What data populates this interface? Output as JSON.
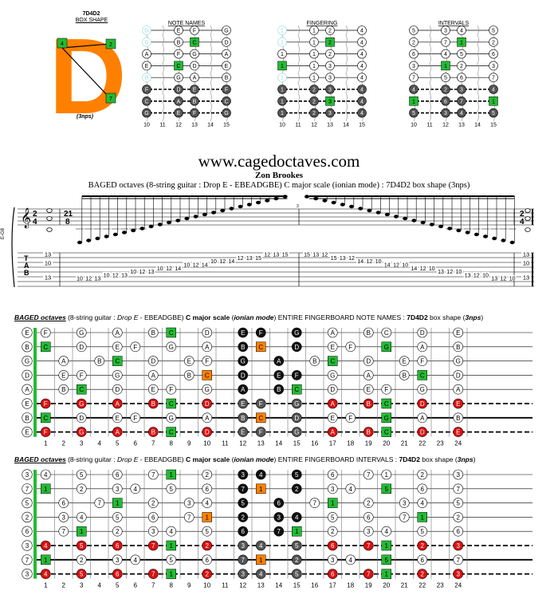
{
  "top_panel": {
    "box_label": "7D4D2",
    "box_shape_label": "BOX SHAPE",
    "shape_letter": "D",
    "shape_markers": [
      "2",
      "4",
      "7"
    ],
    "nps_label": "(3nps)",
    "diagrams": [
      {
        "title": "NOTE NAMES",
        "rows": [
          [
            "G",
            "E",
            "F",
            "G"
          ],
          [
            "D",
            "B",
            "C",
            "D"
          ],
          [
            "A",
            "F",
            "G",
            "A"
          ],
          [
            "E",
            "C",
            "D",
            "E"
          ],
          [
            "B",
            "G",
            "A",
            "B"
          ],
          [
            "F",
            "D",
            "E",
            "F"
          ],
          [
            "C",
            "A",
            "B",
            "C"
          ],
          [
            "G",
            "E",
            "F",
            "G"
          ]
        ],
        "hilite_col_name": "C"
      },
      {
        "title": "FINGERING",
        "rows": [
          [
            "1",
            "1",
            "2",
            "4"
          ],
          [
            "1",
            "1",
            "2",
            "4"
          ],
          [
            "1",
            "1",
            "2",
            "4"
          ],
          [
            "1",
            "1",
            "3",
            "4"
          ],
          [
            "1",
            "1",
            "3",
            "4"
          ],
          [
            "1",
            "2",
            "3",
            "4"
          ],
          [
            "1",
            "2",
            "3",
            "4"
          ],
          [
            "1",
            "2",
            "3",
            "4"
          ]
        ]
      },
      {
        "title": "INTERVALS",
        "rows": [
          [
            "5",
            "3",
            "4",
            "5"
          ],
          [
            "2",
            "7",
            "1",
            "2"
          ],
          [
            "6",
            "4",
            "5",
            "6"
          ],
          [
            "3",
            "1",
            "2",
            "3"
          ],
          [
            "7",
            "5",
            "6",
            "7"
          ],
          [
            "4",
            "2",
            "3",
            "4"
          ],
          [
            "1",
            "6",
            "7",
            "1"
          ],
          [
            "5",
            "3",
            "4",
            "5"
          ]
        ]
      }
    ],
    "fret_numbers": [
      "10",
      "11",
      "12",
      "13",
      "14",
      "15"
    ]
  },
  "header": {
    "site": "www.cagedoctaves.com",
    "author": "Zon Brookes",
    "subtitle": "BAGED octaves (8-string guitar : Drop E - EBEADGBE) C major scale (ionian mode) : 7D4D2 box shape (3nps)"
  },
  "score": {
    "time_sig_start": [
      "2",
      "4"
    ],
    "time_sig_mid": [
      "21",
      "8"
    ],
    "time_sig_end": [
      "2",
      "4"
    ],
    "clef_label": "E-G8",
    "tab_letters": [
      "T",
      "A",
      "B"
    ],
    "start_chord": [
      "13",
      "10",
      "13"
    ],
    "end_chord": [
      "13",
      "10",
      "13"
    ],
    "tab_run_up": [
      "10",
      "12",
      "13",
      "10",
      "12",
      "13",
      "10",
      "12",
      "13",
      "10",
      "12",
      "14",
      "10",
      "12",
      "14",
      "10",
      "12",
      "14",
      "12",
      "13",
      "15",
      "12",
      "13",
      "15"
    ],
    "tab_run_down": [
      "15",
      "13",
      "12",
      "15",
      "13",
      "12",
      "14",
      "12",
      "10",
      "14",
      "12",
      "10",
      "14",
      "12",
      "10",
      "13",
      "12",
      "10",
      "13",
      "12",
      "10",
      "13",
      "12",
      "10"
    ],
    "measure_number": "3"
  },
  "board_notes": {
    "title_parts": {
      "p1": "BAGED octaves",
      "p2": " (8-string guitar : ",
      "p3": "Drop E",
      "p4": " - EBEADGBE) ",
      "p5": "C major scale",
      "p6": " (",
      "p7": "ionian mode",
      "p8": ") ENTIRE FINGERBOARD NOTE NAMES : ",
      "p9": "7D4D2",
      "p10": " box shape (",
      "p11": "3nps",
      "p12": ")"
    },
    "open_strings": [
      "E",
      "B",
      "G",
      "D",
      "A",
      "E",
      "B",
      "E"
    ]
  },
  "board_intervals": {
    "title_parts": {
      "p1": "BAGED octaves",
      "p2": " (8-string guitar : ",
      "p3": "Drop E",
      "p4": " - EBEADGBE) ",
      "p5": "C major scale",
      "p6": " (",
      "p7": "ionian mode",
      "p8": ") ENTIRE FINGERBOARD INTERVALS : ",
      "p9": "7D4D2",
      "p10": " box shape (",
      "p11": "3nps",
      "p12": ")"
    },
    "open_strings": [
      "3",
      "7",
      "5",
      "2",
      "6",
      "3",
      "7",
      "3"
    ]
  },
  "fret_labels": [
    "1",
    "2",
    "3",
    "4",
    "5",
    "6",
    "7",
    "8",
    "9",
    "10",
    "11",
    "12",
    "13",
    "14",
    "15",
    "16",
    "17",
    "18",
    "19",
    "20",
    "21",
    "22",
    "23",
    "24"
  ],
  "colors": {
    "green": "#22bb33",
    "orange": "#ff8000",
    "red": "#dd1111",
    "dark": "#111111",
    "grey": "#555555"
  }
}
